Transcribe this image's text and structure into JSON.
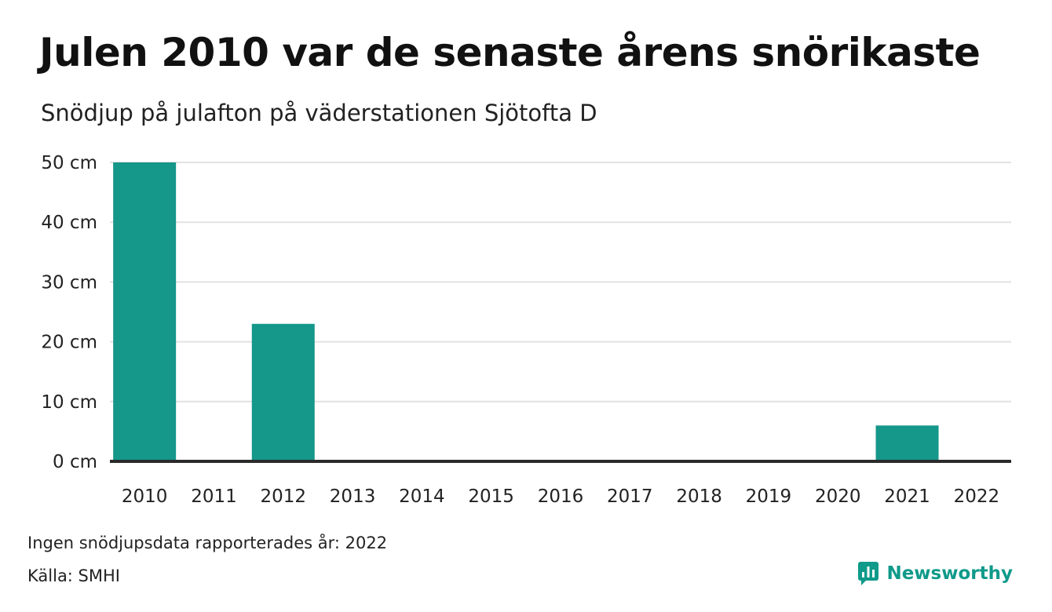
{
  "title": "Julen 2010 var de senaste årens snörikaste",
  "subtitle": "Snödjup på julafton på väderstationen Sjötofta D",
  "note": "Ingen snödjupsdata rapporterades år: 2022",
  "source": "Källa: SMHI",
  "brand": {
    "name": "Newsworthy",
    "icon": "bar-chart-icon",
    "color": "#0f9a8a"
  },
  "chart_data": {
    "type": "bar",
    "title": "Julen 2010 var de senaste årens snörikaste",
    "subtitle": "Snödjup på julafton på väderstationen Sjötofta D",
    "categories": [
      "2010",
      "2011",
      "2012",
      "2013",
      "2014",
      "2015",
      "2016",
      "2017",
      "2018",
      "2019",
      "2020",
      "2021",
      "2022"
    ],
    "values": [
      50,
      0,
      23,
      0,
      0,
      0,
      0,
      0,
      0,
      0,
      0,
      6,
      null
    ],
    "ylim": [
      0,
      50
    ],
    "yticks": [
      0,
      10,
      20,
      30,
      40,
      50
    ],
    "ytick_labels": [
      "0 cm",
      "10 cm",
      "20 cm",
      "30 cm",
      "40 cm",
      "50 cm"
    ],
    "bar_color": "#15978a",
    "grid": true,
    "legend": "none"
  }
}
